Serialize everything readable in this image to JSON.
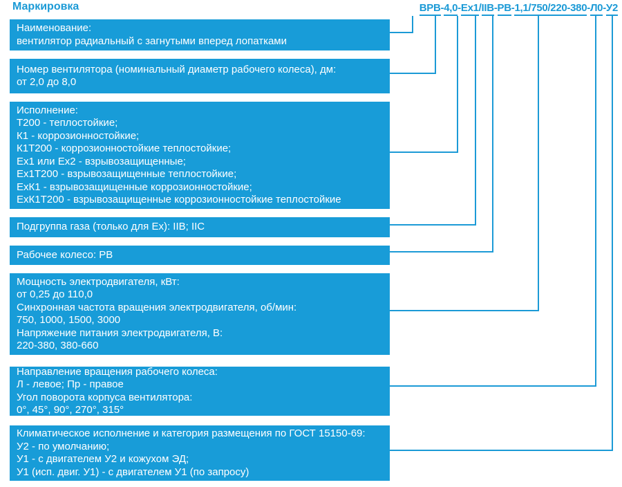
{
  "title": "Маркировка",
  "colors": {
    "accent": "#1b9ad6",
    "box_fill": "#189cd8",
    "text_on_box": "#ffffff",
    "page_bg": "#ffffff"
  },
  "code": {
    "full": "ВРВ-4,0-Ex1/IIB-РВ-1,1/750/220-380-Л0-У2",
    "segments": [
      {
        "text": "ВРВ",
        "u": true
      },
      {
        "text": "-",
        "u": false
      },
      {
        "text": "4,0",
        "u": true
      },
      {
        "text": "-",
        "u": false
      },
      {
        "text": "Ex1",
        "u": true
      },
      {
        "text": "/",
        "u": false
      },
      {
        "text": "IIB",
        "u": true
      },
      {
        "text": "-",
        "u": false
      },
      {
        "text": "РВ",
        "u": true
      },
      {
        "text": "-",
        "u": false
      },
      {
        "text": "1,1/750/220-380",
        "u": true
      },
      {
        "text": "-",
        "u": false
      },
      {
        "text": "Л0",
        "u": true
      },
      {
        "text": "-",
        "u": false
      },
      {
        "text": "У2",
        "u": true
      }
    ]
  },
  "boxes": [
    {
      "name": "Наименование",
      "lines": [
        "Наименование:",
        "вентилятор радиальный с загнутыми вперед лопатками"
      ]
    },
    {
      "name": "Номер вентилятора",
      "lines": [
        "Номер вентилятора (номинальный диаметр рабочего колеса), дм:",
        "от 2,0 до 8,0"
      ]
    },
    {
      "name": "Исполнение",
      "lines": [
        "Исполнение:",
        "Т200 - теплостойкие;",
        "К1 - коррозионностойкие;",
        "К1Т200 - коррозионностойкие теплостойкие;",
        "Ex1 или Ex2 - взрывозащищенные;",
        "Ex1Т200 - взрывозащищенные теплостойкие;",
        "ExК1 - взрывозащищенные коррозионностойкие;",
        "ExК1Т200 - взрывозащищенные коррозионностойкие теплостойкие"
      ]
    },
    {
      "name": "Подгруппа газа",
      "lines": [
        "Подгруппа газа (только для Ex): IIB; IIC"
      ]
    },
    {
      "name": "Рабочее колесо",
      "lines": [
        "Рабочее колесо: РВ"
      ]
    },
    {
      "name": "Электродвигатель",
      "lines": [
        "Мощность электродвигателя, кВт:",
        "от 0,25 до 110,0",
        "Синхронная частота вращения электродвигателя, об/мин:",
        "750, 1000, 1500, 3000",
        "Напряжение питания электродвигателя, В:",
        "220-380, 380-660"
      ]
    },
    {
      "name": "Направление вращения",
      "lines": [
        "Направление вращения рабочего колеса:",
        "Л - левое; Пр - правое",
        "Угол поворота корпуса вентилятора:",
        "0°, 45°, 90°, 270°, 315°"
      ]
    },
    {
      "name": "Климатическое исполнение",
      "lines": [
        "Климатическое исполнение и категория размещения по ГОСТ 15150-69:",
        "У2 - по умолчанию;",
        "У1 - с двигателем У2 и кожухом ЭД;",
        "У1 (исп. двиг. У1) - с двигателем У1 (по запросу)"
      ]
    }
  ]
}
